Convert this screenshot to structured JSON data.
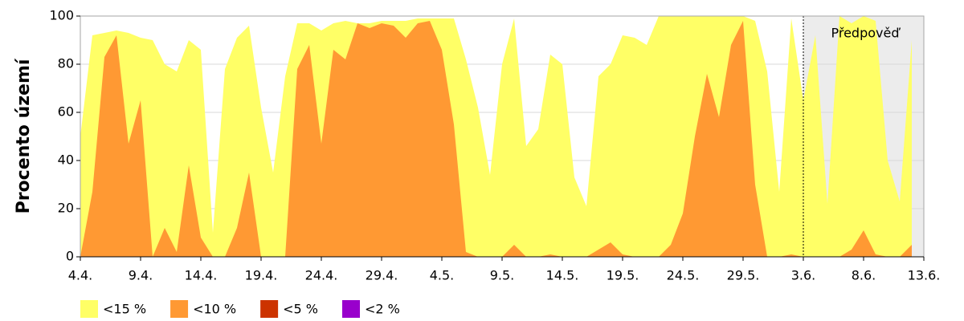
{
  "chart_data": {
    "type": "area",
    "y_label": "Procento území",
    "forecast_label": "Předpověď",
    "forecast_start": "3.6.",
    "categories": [
      "4.4.",
      null,
      null,
      null,
      null,
      "9.4.",
      null,
      null,
      null,
      null,
      "14.4.",
      null,
      null,
      null,
      null,
      "19.4.",
      null,
      null,
      null,
      null,
      "24.4.",
      null,
      null,
      null,
      null,
      "29.4.",
      null,
      null,
      null,
      null,
      "4.5.",
      null,
      null,
      null,
      null,
      "9.5.",
      null,
      null,
      null,
      null,
      "14.5.",
      null,
      null,
      null,
      null,
      "19.5.",
      null,
      null,
      null,
      null,
      "24.5.",
      null,
      null,
      null,
      null,
      "29.5.",
      null,
      null,
      null,
      null,
      "3.6.",
      null,
      null,
      null,
      null,
      "8.6.",
      null,
      null,
      null,
      null,
      "13.6."
    ],
    "ylim": [
      0,
      100
    ],
    "yticks": [
      0,
      20,
      40,
      60,
      80,
      100
    ],
    "grid": true,
    "series": [
      {
        "name": "<15 %",
        "color": "#ffff66",
        "values": [
          50,
          92,
          93,
          94,
          93,
          91,
          90,
          80,
          77,
          90,
          86,
          10,
          78,
          91,
          96,
          62,
          35,
          75,
          97,
          97,
          94,
          97,
          98,
          97,
          97,
          98,
          98,
          98,
          99,
          99,
          99,
          99,
          82,
          62,
          34,
          80,
          99,
          46,
          53,
          84,
          80,
          33,
          21,
          75,
          80,
          92,
          91,
          88,
          100,
          100,
          100,
          100,
          100,
          100,
          100,
          100,
          98,
          77,
          27,
          99,
          65,
          92,
          22,
          100,
          97,
          100,
          98,
          40,
          23,
          90,
          null
        ]
      },
      {
        "name": "<10 %",
        "color": "#ff9933",
        "values": [
          0,
          27,
          83,
          92,
          47,
          65,
          0,
          12,
          2,
          38,
          8,
          0,
          0,
          12,
          35,
          0,
          0,
          0,
          78,
          88,
          47,
          86,
          82,
          97,
          95,
          97,
          96,
          91,
          97,
          98,
          86,
          55,
          2,
          0,
          0,
          0,
          5,
          0,
          0,
          1,
          0,
          0,
          0,
          3,
          6,
          1,
          0,
          0,
          0,
          5,
          18,
          50,
          76,
          58,
          88,
          98,
          30,
          0,
          0,
          1,
          0,
          0,
          0,
          0,
          3,
          11,
          1,
          0,
          0,
          5,
          null
        ]
      },
      {
        "name": "<5 %",
        "color": "#cc3300",
        "values": [
          0,
          0,
          0,
          0,
          0,
          0,
          0,
          0,
          0,
          0,
          0,
          0,
          0,
          0,
          0,
          0,
          0,
          0,
          0,
          0,
          0,
          0,
          0,
          0,
          0,
          0,
          0,
          0,
          0,
          0,
          0,
          0,
          0,
          0,
          0,
          0,
          0,
          0,
          0,
          0,
          0,
          0,
          0,
          0,
          0,
          0,
          0,
          0,
          0,
          0,
          0,
          0,
          0,
          0,
          0,
          0,
          0,
          0,
          0,
          0,
          0,
          0,
          0,
          0,
          0,
          0,
          0,
          0,
          0,
          0,
          null
        ]
      },
      {
        "name": "<2 %",
        "color": "#9900cc",
        "values": [
          0,
          0,
          0,
          0,
          0,
          0,
          0,
          0,
          0,
          0,
          0,
          0,
          0,
          0,
          0,
          0,
          0,
          0,
          0,
          0,
          0,
          0,
          0,
          0,
          0,
          0,
          0,
          0,
          0,
          0,
          0,
          0,
          0,
          0,
          0,
          0,
          0,
          0,
          0,
          0,
          0,
          0,
          0,
          0,
          0,
          0,
          0,
          0,
          0,
          0,
          0,
          0,
          0,
          0,
          0,
          0,
          0,
          0,
          0,
          0,
          0,
          0,
          0,
          0,
          0,
          0,
          0,
          0,
          0,
          0,
          null
        ]
      }
    ]
  }
}
